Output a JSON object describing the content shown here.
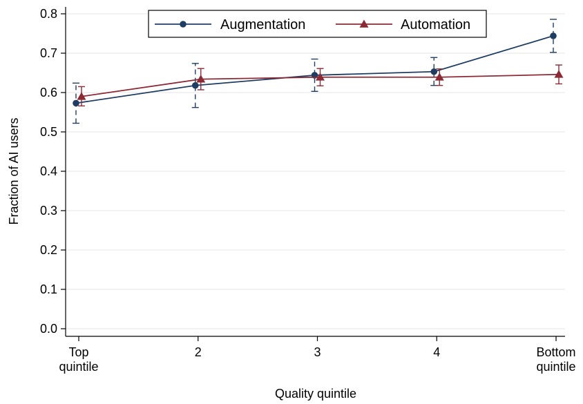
{
  "chart_data": {
    "type": "line",
    "title": "",
    "xlabel": "Quality quintile",
    "ylabel": "Fraction of AI users",
    "ylim": [
      0.0,
      0.8
    ],
    "yticks": [
      "0.0",
      "0.1",
      "0.2",
      "0.3",
      "0.4",
      "0.5",
      "0.6",
      "0.7",
      "0.8"
    ],
    "categories": [
      [
        "Top",
        "quintile"
      ],
      [
        "2"
      ],
      [
        "3"
      ],
      [
        "4"
      ],
      [
        "Bottom",
        "quintile"
      ]
    ],
    "grid": true,
    "legend_position": "top-center",
    "series": [
      {
        "name": "Augmentation",
        "color": "#1f3d63",
        "marker": "circle",
        "values": [
          0.573,
          0.618,
          0.644,
          0.653,
          0.744
        ],
        "ci_low": [
          0.522,
          0.562,
          0.603,
          0.618,
          0.702
        ],
        "ci_high": [
          0.624,
          0.674,
          0.685,
          0.689,
          0.786
        ]
      },
      {
        "name": "Automation",
        "color": "#8b2a35",
        "marker": "triangle",
        "values": [
          0.59,
          0.634,
          0.639,
          0.639,
          0.646
        ],
        "ci_low": [
          0.566,
          0.607,
          0.617,
          0.618,
          0.622
        ],
        "ci_high": [
          0.615,
          0.661,
          0.661,
          0.66,
          0.67
        ]
      }
    ]
  }
}
